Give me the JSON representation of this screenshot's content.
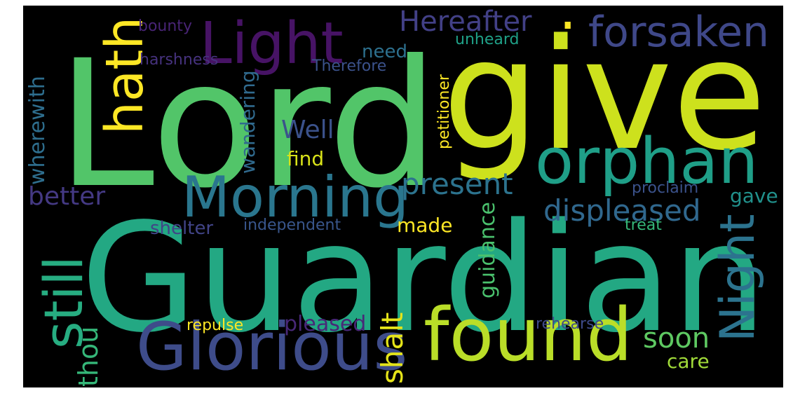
{
  "background_color": "#000000",
  "frame_color": "#ffffff",
  "words": [
    {
      "id": "lord",
      "text": "Lord",
      "color": "#52c569",
      "orientation": "horizontal"
    },
    {
      "id": "guardian",
      "text": "Guardian",
      "color": "#23a883",
      "orientation": "horizontal"
    },
    {
      "id": "give",
      "text": "give",
      "color": "#cde11d",
      "orientation": "horizontal"
    },
    {
      "id": "found",
      "text": "found",
      "color": "#bade28",
      "orientation": "horizontal"
    },
    {
      "id": "glorious",
      "text": "Glorious",
      "color": "#3e4c8a",
      "orientation": "horizontal"
    },
    {
      "id": "orphan",
      "text": "orphan",
      "color": "#1f9f88",
      "orientation": "horizontal"
    },
    {
      "id": "morning",
      "text": "Morning",
      "color": "#2a768e",
      "orientation": "horizontal"
    },
    {
      "id": "light",
      "text": "Light",
      "color": "#471365",
      "orientation": "horizontal"
    },
    {
      "id": "forsaken",
      "text": "forsaken",
      "color": "#3f4889",
      "orientation": "horizontal"
    },
    {
      "id": "hereafter",
      "text": "Hereafter",
      "color": "#424086",
      "orientation": "horizontal"
    },
    {
      "id": "hath",
      "text": "hath",
      "color": "#fde725",
      "orientation": "vertical"
    },
    {
      "id": "still",
      "text": "still",
      "color": "#27ad81",
      "orientation": "vertical"
    },
    {
      "id": "night",
      "text": "Night",
      "color": "#2c738e",
      "orientation": "vertical"
    },
    {
      "id": "displeased",
      "text": "displeased",
      "color": "#30688e",
      "orientation": "horizontal"
    },
    {
      "id": "present",
      "text": "present",
      "color": "#2c738e",
      "orientation": "horizontal"
    },
    {
      "id": "soon",
      "text": "soon",
      "color": "#5ec962",
      "orientation": "horizontal"
    },
    {
      "id": "shalt",
      "text": "shalt",
      "color": "#e5e419",
      "orientation": "vertical"
    },
    {
      "id": "thou",
      "text": "thou",
      "color": "#35b779",
      "orientation": "vertical"
    },
    {
      "id": "pleased",
      "text": "pleased",
      "color": "#482878",
      "orientation": "horizontal"
    },
    {
      "id": "wherewith",
      "text": "wherewith",
      "color": "#2e6e8e",
      "orientation": "vertical"
    },
    {
      "id": "better",
      "text": "better",
      "color": "#443983",
      "orientation": "horizontal"
    },
    {
      "id": "well",
      "text": "Well",
      "color": "#3b528b",
      "orientation": "horizontal"
    },
    {
      "id": "find",
      "text": "find",
      "color": "#d8e219",
      "orientation": "horizontal"
    },
    {
      "id": "wandering",
      "text": "wandering",
      "color": "#306a8e",
      "orientation": "vertical"
    },
    {
      "id": "shelter",
      "text": "shelter",
      "color": "#414487",
      "orientation": "horizontal"
    },
    {
      "id": "independent",
      "text": "independent",
      "color": "#39568c",
      "orientation": "horizontal"
    },
    {
      "id": "made",
      "text": "made",
      "color": "#fde725",
      "orientation": "horizontal"
    },
    {
      "id": "guidance",
      "text": "guidance",
      "color": "#4ac16d",
      "orientation": "vertical"
    },
    {
      "id": "gave",
      "text": "gave",
      "color": "#21918c",
      "orientation": "horizontal"
    },
    {
      "id": "proclaim",
      "text": "proclaim",
      "color": "#3b528b",
      "orientation": "horizontal"
    },
    {
      "id": "treat",
      "text": "treat",
      "color": "#35b779",
      "orientation": "horizontal"
    },
    {
      "id": "care",
      "text": "care",
      "color": "#a0da39",
      "orientation": "horizontal"
    },
    {
      "id": "rehearse",
      "text": "rehearse",
      "color": "#3e4a89",
      "orientation": "horizontal"
    },
    {
      "id": "repulse",
      "text": "repulse",
      "color": "#fde725",
      "orientation": "horizontal"
    },
    {
      "id": "need",
      "text": "need",
      "color": "#2d708e",
      "orientation": "horizontal"
    },
    {
      "id": "bounty",
      "text": "bounty",
      "color": "#482475",
      "orientation": "horizontal"
    },
    {
      "id": "harshness",
      "text": "harshness",
      "color": "#46327e",
      "orientation": "horizontal"
    },
    {
      "id": "therefore",
      "text": "Therefore",
      "color": "#3b528b",
      "orientation": "horizontal"
    },
    {
      "id": "unheard",
      "text": "unheard",
      "color": "#1fa188",
      "orientation": "horizontal"
    },
    {
      "id": "petitioner",
      "text": "petitioner",
      "color": "#fde725",
      "orientation": "vertical"
    },
    {
      "id": "dot",
      "text": ".",
      "color": "#fde725",
      "orientation": "horizontal"
    }
  ]
}
